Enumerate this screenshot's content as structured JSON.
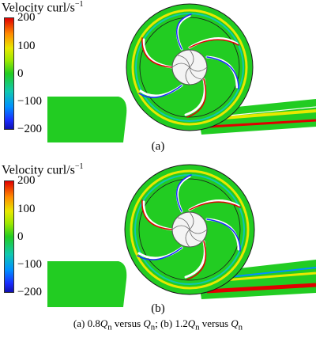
{
  "colorbar": {
    "title_prefix": "Velocity curl/s",
    "title_exponent": "−1",
    "ticks": [
      "200",
      "100",
      "0",
      "−100",
      "−200"
    ]
  },
  "panels": [
    {
      "label": "(a)"
    },
    {
      "label": "(b)"
    }
  ],
  "caption": {
    "a_prefix": "(a) 0.8",
    "a_q": "Q",
    "a_sub": "n",
    "versus1": " versus ",
    "a_q2": "Q",
    "a_sub2": "n",
    "sep": "; (b) 1.2",
    "b_q": "Q",
    "b_sub": "n",
    "versus2": " versus ",
    "b_q2": "Q",
    "b_sub2": "n"
  },
  "colors": {
    "field_green": "#22cc22",
    "high": "#e00000",
    "low": "#1010b0"
  }
}
